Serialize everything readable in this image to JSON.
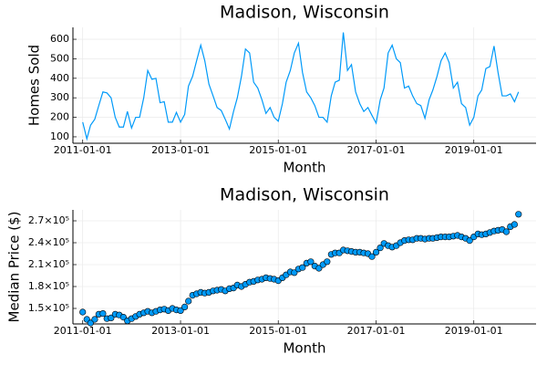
{
  "chart_data": [
    {
      "type": "line",
      "title": "Madison, Wisconsin",
      "x_label": "Month",
      "y_label": "Homes Sold",
      "x": [
        "2011-01-01",
        "2011-02-01",
        "2011-03-01",
        "2011-04-01",
        "2011-05-01",
        "2011-06-01",
        "2011-07-01",
        "2011-08-01",
        "2011-09-01",
        "2011-10-01",
        "2011-11-01",
        "2011-12-01",
        "2012-01-01",
        "2012-02-01",
        "2012-03-01",
        "2012-04-01",
        "2012-05-01",
        "2012-06-01",
        "2012-07-01",
        "2012-08-01",
        "2012-09-01",
        "2012-10-01",
        "2012-11-01",
        "2012-12-01",
        "2013-01-01",
        "2013-02-01",
        "2013-03-01",
        "2013-04-01",
        "2013-05-01",
        "2013-06-01",
        "2013-07-01",
        "2013-08-01",
        "2013-09-01",
        "2013-10-01",
        "2013-11-01",
        "2013-12-01",
        "2014-01-01",
        "2014-02-01",
        "2014-03-01",
        "2014-04-01",
        "2014-05-01",
        "2014-06-01",
        "2014-07-01",
        "2014-08-01",
        "2014-09-01",
        "2014-10-01",
        "2014-11-01",
        "2014-12-01",
        "2015-01-01",
        "2015-02-01",
        "2015-03-01",
        "2015-04-01",
        "2015-05-01",
        "2015-06-01",
        "2015-07-01",
        "2015-08-01",
        "2015-09-01",
        "2015-10-01",
        "2015-11-01",
        "2015-12-01",
        "2016-01-01",
        "2016-02-01",
        "2016-03-01",
        "2016-04-01",
        "2016-05-01",
        "2016-06-01",
        "2016-07-01",
        "2016-08-01",
        "2016-09-01",
        "2016-10-01",
        "2016-11-01",
        "2016-12-01",
        "2017-01-01",
        "2017-02-01",
        "2017-03-01",
        "2017-04-01",
        "2017-05-01",
        "2017-06-01",
        "2017-07-01",
        "2017-08-01",
        "2017-09-01",
        "2017-10-01",
        "2017-11-01",
        "2017-12-01",
        "2018-01-01",
        "2018-02-01",
        "2018-03-01",
        "2018-04-01",
        "2018-05-01",
        "2018-06-01",
        "2018-07-01",
        "2018-08-01",
        "2018-09-01",
        "2018-10-01",
        "2018-11-01",
        "2018-12-01",
        "2019-01-01",
        "2019-02-01",
        "2019-03-01",
        "2019-04-01",
        "2019-05-01",
        "2019-06-01",
        "2019-07-01",
        "2019-08-01",
        "2019-09-01",
        "2019-10-01",
        "2019-11-01",
        "2019-12-01"
      ],
      "series": [
        {
          "color": "#009af9",
          "values": [
            175,
            90,
            160,
            190,
            260,
            330,
            325,
            300,
            200,
            150,
            150,
            230,
            145,
            200,
            200,
            300,
            440,
            395,
            400,
            275,
            280,
            175,
            175,
            225,
            175,
            215,
            360,
            410,
            490,
            570,
            490,
            370,
            310,
            250,
            235,
            190,
            140,
            230,
            300,
            410,
            550,
            530,
            380,
            350,
            290,
            220,
            250,
            200,
            180,
            270,
            380,
            440,
            530,
            580,
            430,
            330,
            300,
            260,
            200,
            200,
            175,
            310,
            380,
            390,
            635,
            440,
            470,
            330,
            270,
            230,
            250,
            210,
            170,
            290,
            350,
            530,
            570,
            500,
            480,
            350,
            360,
            310,
            270,
            260,
            195,
            290,
            340,
            410,
            490,
            530,
            480,
            350,
            380,
            270,
            250,
            160,
            200,
            310,
            340,
            450,
            460,
            565,
            430,
            310,
            310,
            320,
            280,
            330
          ]
        }
      ],
      "xlim": [
        "2010-10-20",
        "2020-04-10"
      ],
      "xticks": [
        "2011-01-01",
        "2013-01-01",
        "2015-01-01",
        "2017-01-01",
        "2019-01-01"
      ],
      "ylim": [
        67,
        661
      ],
      "yticks": [
        100,
        200,
        300,
        400,
        500,
        600
      ],
      "grid": true
    },
    {
      "type": "scatter",
      "title": "Madison, Wisconsin",
      "x_label": "Month",
      "y_label": "Median Price ($)",
      "x": [
        "2011-01-01",
        "2011-02-01",
        "2011-03-01",
        "2011-04-01",
        "2011-05-01",
        "2011-06-01",
        "2011-07-01",
        "2011-08-01",
        "2011-09-01",
        "2011-10-01",
        "2011-11-01",
        "2011-12-01",
        "2012-01-01",
        "2012-02-01",
        "2012-03-01",
        "2012-04-01",
        "2012-05-01",
        "2012-06-01",
        "2012-07-01",
        "2012-08-01",
        "2012-09-01",
        "2012-10-01",
        "2012-11-01",
        "2012-12-01",
        "2013-01-01",
        "2013-02-01",
        "2013-03-01",
        "2013-04-01",
        "2013-05-01",
        "2013-06-01",
        "2013-07-01",
        "2013-08-01",
        "2013-09-01",
        "2013-10-01",
        "2013-11-01",
        "2013-12-01",
        "2014-01-01",
        "2014-02-01",
        "2014-03-01",
        "2014-04-01",
        "2014-05-01",
        "2014-06-01",
        "2014-07-01",
        "2014-08-01",
        "2014-09-01",
        "2014-10-01",
        "2014-11-01",
        "2014-12-01",
        "2015-01-01",
        "2015-02-01",
        "2015-03-01",
        "2015-04-01",
        "2015-05-01",
        "2015-06-01",
        "2015-07-01",
        "2015-08-01",
        "2015-09-01",
        "2015-10-01",
        "2015-11-01",
        "2015-12-01",
        "2016-01-01",
        "2016-02-01",
        "2016-03-01",
        "2016-04-01",
        "2016-05-01",
        "2016-06-01",
        "2016-07-01",
        "2016-08-01",
        "2016-09-01",
        "2016-10-01",
        "2016-11-01",
        "2016-12-01",
        "2017-01-01",
        "2017-02-01",
        "2017-03-01",
        "2017-04-01",
        "2017-05-01",
        "2017-06-01",
        "2017-07-01",
        "2017-08-01",
        "2017-09-01",
        "2017-10-01",
        "2017-11-01",
        "2017-12-01",
        "2018-01-01",
        "2018-02-01",
        "2018-03-01",
        "2018-04-01",
        "2018-05-01",
        "2018-06-01",
        "2018-07-01",
        "2018-08-01",
        "2018-09-01",
        "2018-10-01",
        "2018-11-01",
        "2018-12-01",
        "2019-01-01",
        "2019-02-01",
        "2019-03-01",
        "2019-04-01",
        "2019-05-01",
        "2019-06-01",
        "2019-07-01",
        "2019-08-01",
        "2019-09-01",
        "2019-10-01",
        "2019-11-01",
        "2019-12-01"
      ],
      "series": [
        {
          "color": "#009af9",
          "values": [
            145000,
            135000,
            130000,
            135000,
            142000,
            143000,
            136000,
            137000,
            142000,
            141000,
            138000,
            133000,
            136000,
            139000,
            142000,
            144000,
            146000,
            144000,
            146000,
            148000,
            149000,
            147000,
            150000,
            148000,
            147000,
            152000,
            160000,
            168000,
            170000,
            172000,
            171000,
            172000,
            174000,
            175000,
            176000,
            174000,
            177000,
            178000,
            182000,
            180000,
            183000,
            186000,
            187000,
            189000,
            190000,
            192000,
            191000,
            190000,
            188000,
            192000,
            196000,
            200000,
            199000,
            204000,
            206000,
            212000,
            214000,
            208000,
            205000,
            210000,
            214000,
            224000,
            226000,
            226000,
            230000,
            229000,
            228000,
            227000,
            227000,
            226000,
            225000,
            221000,
            227000,
            233000,
            239000,
            236000,
            234000,
            236000,
            240000,
            243000,
            244000,
            244000,
            246000,
            246000,
            245000,
            246000,
            246000,
            247000,
            248000,
            248000,
            248000,
            249000,
            250000,
            248000,
            246000,
            243000,
            248000,
            252000,
            251000,
            252000,
            254000,
            256000,
            257000,
            258000,
            255000,
            262000,
            265000,
            279000
          ]
        }
      ],
      "xlim": [
        "2010-10-20",
        "2020-04-10"
      ],
      "xticks": [
        "2011-01-01",
        "2013-01-01",
        "2015-01-01",
        "2017-01-01",
        "2019-01-01"
      ],
      "ylim": [
        128750,
        285000
      ],
      "yticks": [
        {
          "value": 150000,
          "label": "1.5×10⁵"
        },
        {
          "value": 180000,
          "label": "1.8×10⁵"
        },
        {
          "value": 210000,
          "label": "2.1×10⁵"
        },
        {
          "value": 240000,
          "label": "2.4×10⁵"
        },
        {
          "value": 270000,
          "label": "2.7×10⁵"
        }
      ],
      "grid": true
    }
  ]
}
